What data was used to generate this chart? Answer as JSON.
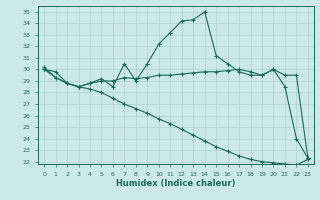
{
  "title": "",
  "xlabel": "Humidex (Indice chaleur)",
  "ylabel": "",
  "bg_color": "#cce8e8",
  "line_color": "#1a6b5a",
  "ylim": [
    21.8,
    35.5
  ],
  "xlim": [
    -0.5,
    23.5
  ],
  "yticks": [
    22,
    23,
    24,
    25,
    26,
    27,
    28,
    29,
    30,
    31,
    32,
    33,
    34,
    35
  ],
  "xticks": [
    0,
    1,
    2,
    3,
    4,
    5,
    6,
    7,
    8,
    9,
    10,
    11,
    12,
    13,
    14,
    15,
    16,
    17,
    18,
    19,
    20,
    21,
    22,
    23
  ],
  "series1_x": [
    0,
    1,
    2,
    3,
    4,
    5,
    6,
    7,
    8,
    9,
    10,
    11,
    12,
    13,
    14,
    15,
    16,
    17,
    18,
    19,
    20,
    21,
    22,
    23
  ],
  "series1_y": [
    30.0,
    29.3,
    28.8,
    28.5,
    28.8,
    29.2,
    28.5,
    30.5,
    29.0,
    30.5,
    32.2,
    33.2,
    34.2,
    34.3,
    35.0,
    31.2,
    30.5,
    29.8,
    29.5,
    29.5,
    30.0,
    28.5,
    24.0,
    22.3
  ],
  "series2_x": [
    0,
    1,
    2,
    3,
    4,
    5,
    6,
    7,
    8,
    9,
    10,
    11,
    12,
    13,
    14,
    15,
    16,
    17,
    18,
    19,
    20,
    21,
    22,
    23
  ],
  "series2_y": [
    30.2,
    29.3,
    28.8,
    28.5,
    28.3,
    28.0,
    27.5,
    27.0,
    26.6,
    26.2,
    25.7,
    25.3,
    24.8,
    24.3,
    23.8,
    23.3,
    22.9,
    22.5,
    22.2,
    22.0,
    21.9,
    21.8,
    21.7,
    22.2
  ],
  "series3_x": [
    0,
    1,
    2,
    3,
    4,
    5,
    6,
    7,
    8,
    9,
    10,
    11,
    12,
    13,
    14,
    15,
    16,
    17,
    18,
    19,
    20,
    21,
    22,
    23
  ],
  "series3_y": [
    30.0,
    29.8,
    28.8,
    28.5,
    28.8,
    29.0,
    29.0,
    29.3,
    29.2,
    29.3,
    29.5,
    29.5,
    29.6,
    29.7,
    29.8,
    29.8,
    29.9,
    30.0,
    29.8,
    29.5,
    30.0,
    29.5,
    29.5,
    22.3
  ]
}
